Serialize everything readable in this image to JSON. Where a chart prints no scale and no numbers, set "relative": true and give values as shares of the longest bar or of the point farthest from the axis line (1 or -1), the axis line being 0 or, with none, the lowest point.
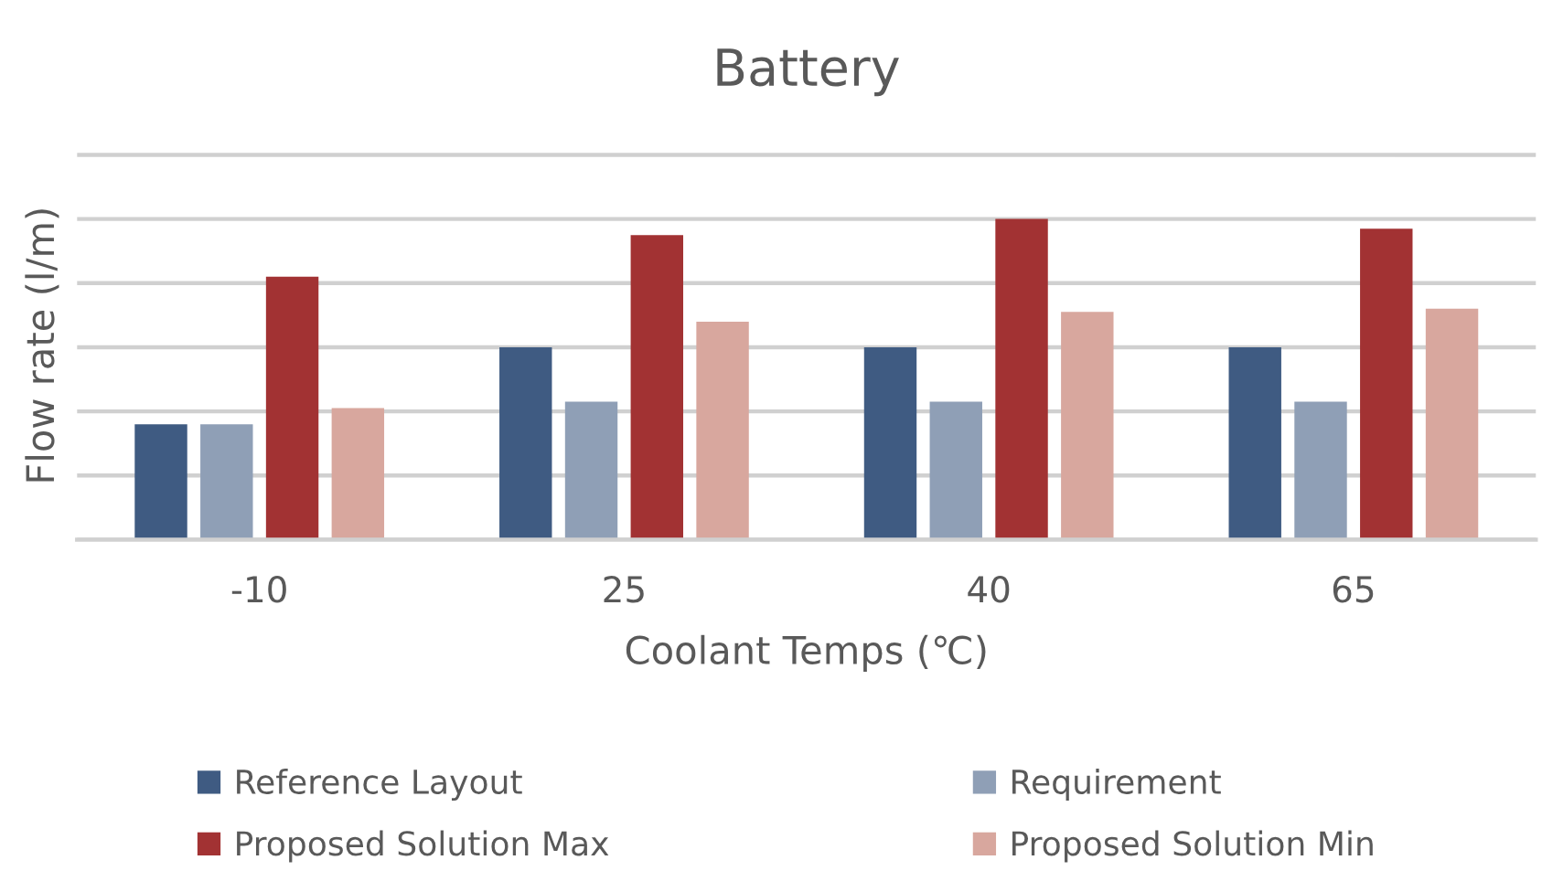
{
  "chart_data": {
    "type": "bar",
    "title": "Battery",
    "xlabel": "Coolant Temps (℃)",
    "ylabel": "Flow rate (l/m)",
    "categories": [
      "-10",
      "25",
      "40",
      "65"
    ],
    "relative": true,
    "series": [
      {
        "name": "Reference Layout",
        "color": "#3f5b82",
        "values": [
          0.36,
          0.6,
          0.6,
          0.6
        ]
      },
      {
        "name": "Requirement",
        "color": "#8f9fb6",
        "values": [
          0.36,
          0.43,
          0.43,
          0.43
        ]
      },
      {
        "name": "Proposed Solution Max",
        "color": "#a23233",
        "values": [
          0.82,
          0.95,
          1.0,
          0.97
        ]
      },
      {
        "name": "Proposed Solution Min",
        "color": "#d8a79e",
        "values": [
          0.41,
          0.68,
          0.71,
          0.72
        ]
      }
    ],
    "grid": "y",
    "legend": "bottom",
    "tick_labels": "x"
  }
}
